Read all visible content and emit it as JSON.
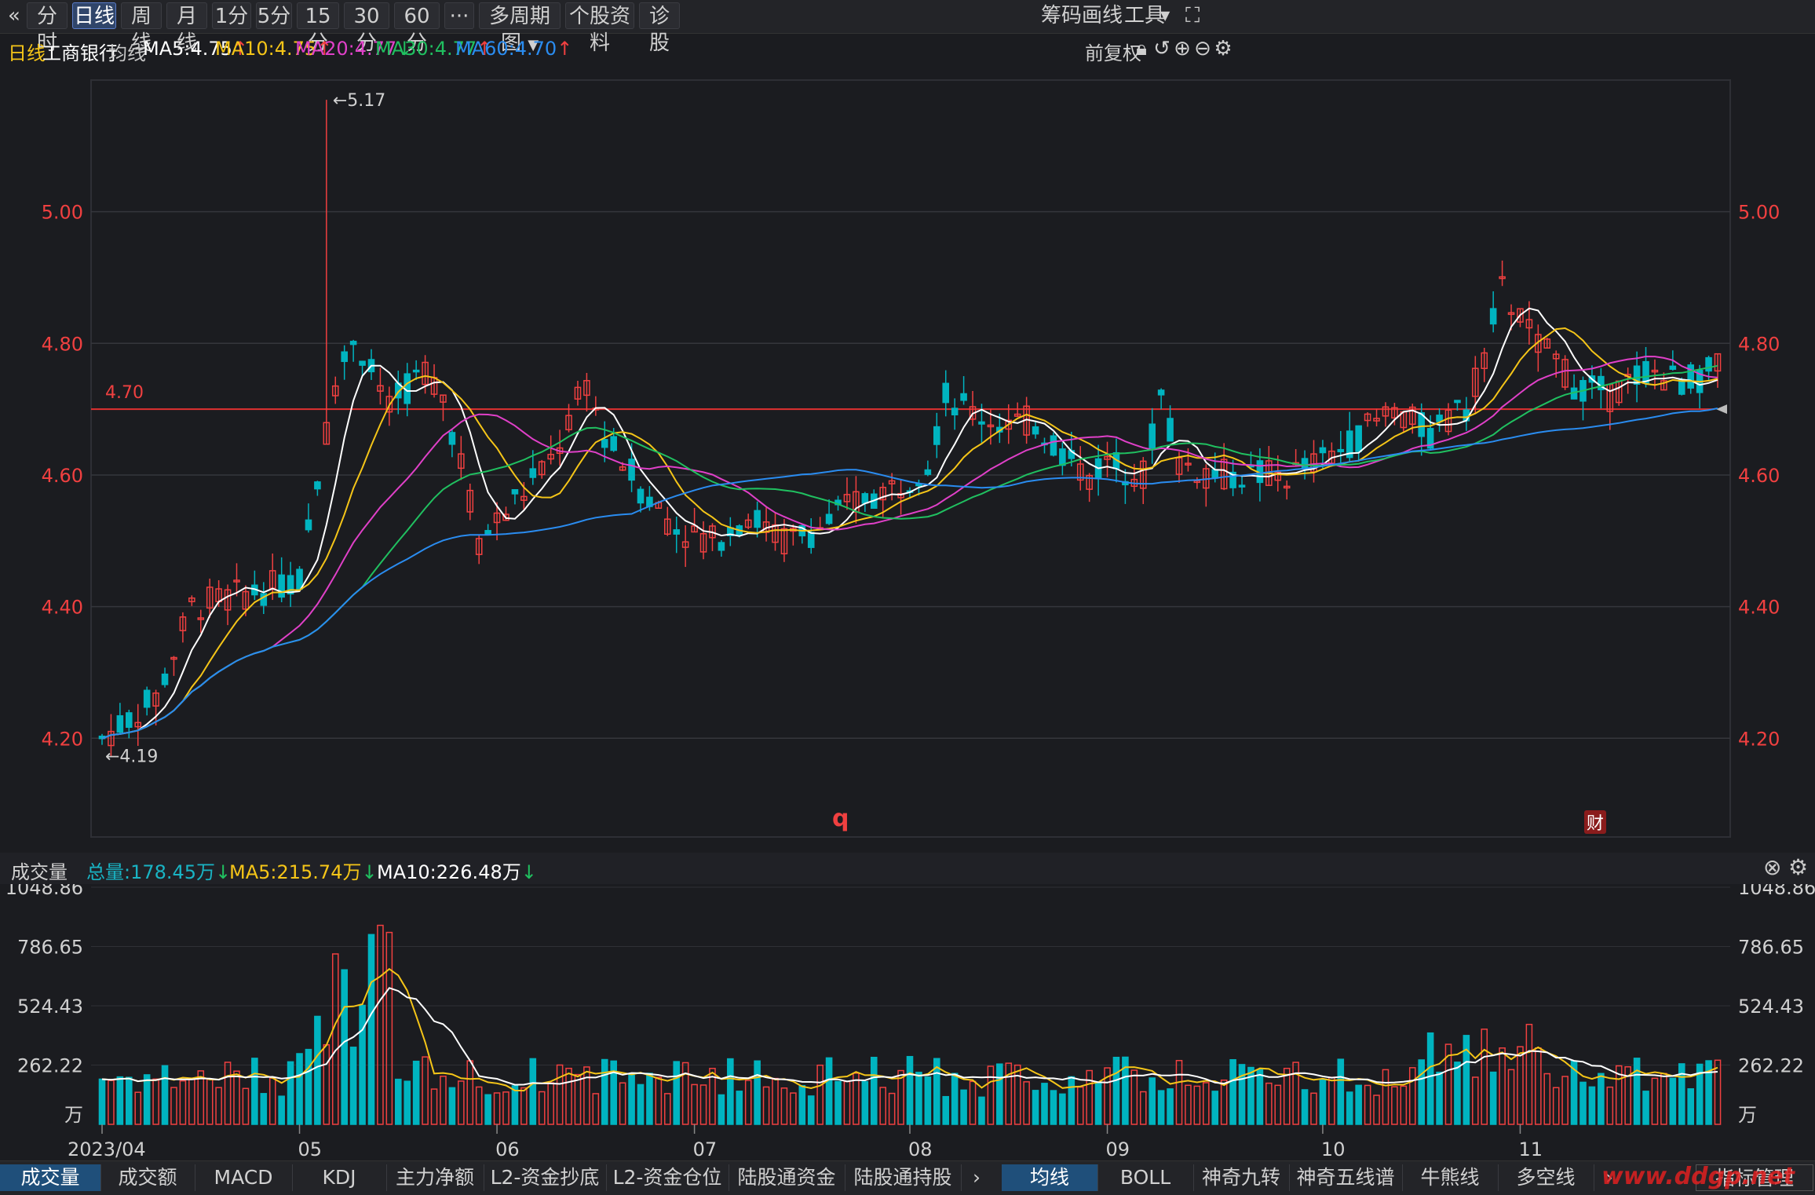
{
  "toolbar": {
    "back_icon": "«",
    "periods": [
      "分时",
      "日线",
      "周线",
      "月线",
      "1分",
      "5分",
      "15分",
      "30分",
      "60分",
      "···",
      "多周期图",
      "个股资料",
      "诊股"
    ],
    "active": "日线",
    "right": [
      "筹码",
      "画线",
      "工具"
    ]
  },
  "legend": {
    "period": "日线",
    "stock_name": "工商银行",
    "ma_label": "均线",
    "ma": [
      {
        "text": "MA5:4.75",
        "color": "#ffffff",
        "dir": "up"
      },
      {
        "text": "MA10:4.75",
        "color": "#f5c518",
        "dir": "up"
      },
      {
        "text": "MA20:4.77",
        "color": "#e040c8",
        "dir": "down"
      },
      {
        "text": "MA30:4.77",
        "color": "#20c060",
        "dir": "up"
      },
      {
        "text": "MA60:4.70",
        "color": "#2a8cf0",
        "dir": "up"
      }
    ],
    "adjust": "前复权"
  },
  "volume_bar": {
    "label": "成交量",
    "total": "总量:178.45万",
    "ma5": "MA5:215.74万",
    "ma10": "MA10:226.48万"
  },
  "bottom_tabs_left": [
    "成交量",
    "成交额",
    "MACD",
    "KDJ",
    "主力净额",
    "L2-资金抄底",
    "L2-资金仓位",
    "陆股通资金",
    "陆股通持股"
  ],
  "bottom_tabs_right": [
    "均线",
    "BOLL",
    "神奇九转",
    "神奇五线谱",
    "牛熊线",
    "多空线"
  ],
  "bottom_right_btn": "指标管理",
  "watermark": "www.ddgp.net",
  "colors": {
    "up": "#f04040",
    "down": "#00b4c0",
    "bg": "#1b1c20"
  },
  "chart_data": {
    "type": "candlestick",
    "price_axis": {
      "ticks": [
        4.2,
        4.4,
        4.6,
        4.8,
        5.0
      ],
      "labels": [
        "4.20",
        "4.40",
        "4.60",
        "4.80",
        "5.00"
      ],
      "range": [
        4.05,
        5.2
      ]
    },
    "hline": {
      "value": 4.7,
      "label": "4.70"
    },
    "annotations": [
      {
        "text": "5.17"
      },
      {
        "text": "4.19"
      }
    ],
    "markers": [
      "q",
      "财"
    ],
    "x_labels": [
      "2023/04",
      "05",
      "06",
      "07",
      "08",
      "09",
      "10",
      "11"
    ],
    "volume_axis": {
      "ticks": [
        262.22,
        524.43,
        786.65,
        1048.86
      ],
      "labels": [
        "262.22",
        "524.43",
        "786.65",
        "1048.86"
      ],
      "unit": "万",
      "range": [
        0,
        1048.86
      ]
    },
    "anchors": [
      [
        0,
        4.2
      ],
      [
        6,
        4.26
      ],
      [
        10,
        4.4
      ],
      [
        16,
        4.42
      ],
      [
        22,
        4.44
      ],
      [
        26,
        4.74
      ],
      [
        28,
        4.81
      ],
      [
        32,
        4.7
      ],
      [
        36,
        4.76
      ],
      [
        38,
        4.72
      ],
      [
        40,
        4.62
      ],
      [
        42,
        4.5
      ],
      [
        46,
        4.56
      ],
      [
        50,
        4.62
      ],
      [
        54,
        4.74
      ],
      [
        56,
        4.66
      ],
      [
        60,
        4.58
      ],
      [
        64,
        4.52
      ],
      [
        68,
        4.5
      ],
      [
        72,
        4.54
      ],
      [
        76,
        4.5
      ],
      [
        80,
        4.52
      ],
      [
        84,
        4.56
      ],
      [
        88,
        4.58
      ],
      [
        92,
        4.62
      ],
      [
        94,
        4.72
      ],
      [
        96,
        4.7
      ],
      [
        100,
        4.68
      ],
      [
        104,
        4.68
      ],
      [
        108,
        4.62
      ],
      [
        110,
        4.6
      ],
      [
        112,
        4.62
      ],
      [
        116,
        4.6
      ],
      [
        118,
        4.72
      ],
      [
        120,
        4.62
      ],
      [
        124,
        4.6
      ],
      [
        128,
        4.6
      ],
      [
        132,
        4.6
      ],
      [
        136,
        4.62
      ],
      [
        140,
        4.66
      ],
      [
        144,
        4.7
      ],
      [
        148,
        4.66
      ],
      [
        152,
        4.7
      ],
      [
        154,
        4.78
      ],
      [
        156,
        4.88
      ],
      [
        160,
        4.8
      ],
      [
        164,
        4.74
      ],
      [
        168,
        4.72
      ],
      [
        172,
        4.76
      ],
      [
        176,
        4.74
      ],
      [
        180,
        4.76
      ]
    ]
  }
}
